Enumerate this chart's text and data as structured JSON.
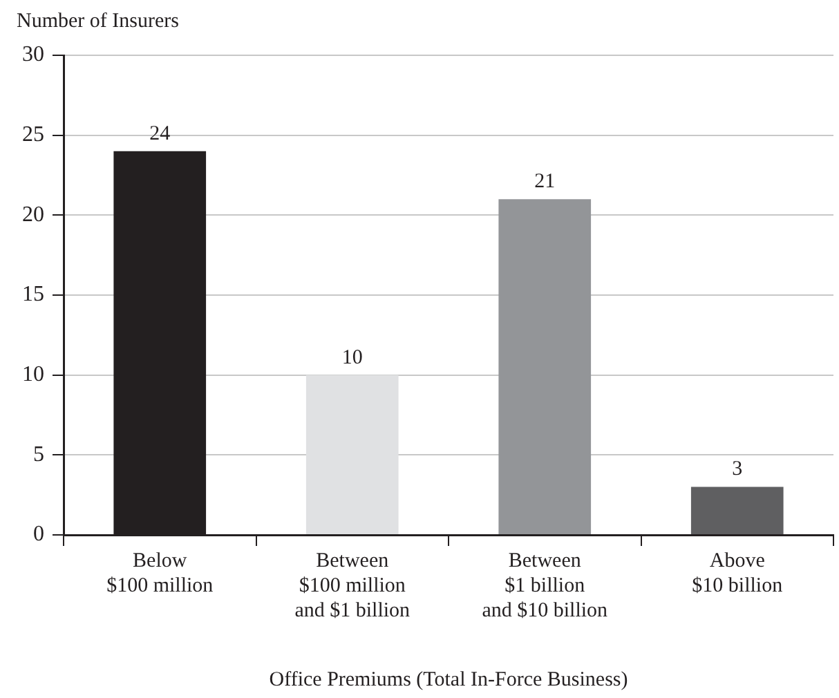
{
  "chart_data": {
    "type": "bar",
    "ylabel": "Number of Insurers",
    "xlabel": "Office Premiums (Total In-Force Business)",
    "categories": [
      "Below\n$100 million",
      "Between\n$100 million\nand $1 billion",
      "Between\n$1 billion\nand $10 billion",
      "Above\n$10 billion"
    ],
    "values": [
      24,
      10,
      21,
      3
    ],
    "colors": [
      "#231f20",
      "#e0e1e3",
      "#939598",
      "#5f5f61"
    ],
    "ylim": [
      0,
      30
    ],
    "yticks": [
      0,
      5,
      10,
      15,
      20,
      25,
      30
    ],
    "grid": "y",
    "data_labels": true,
    "legend": false
  }
}
